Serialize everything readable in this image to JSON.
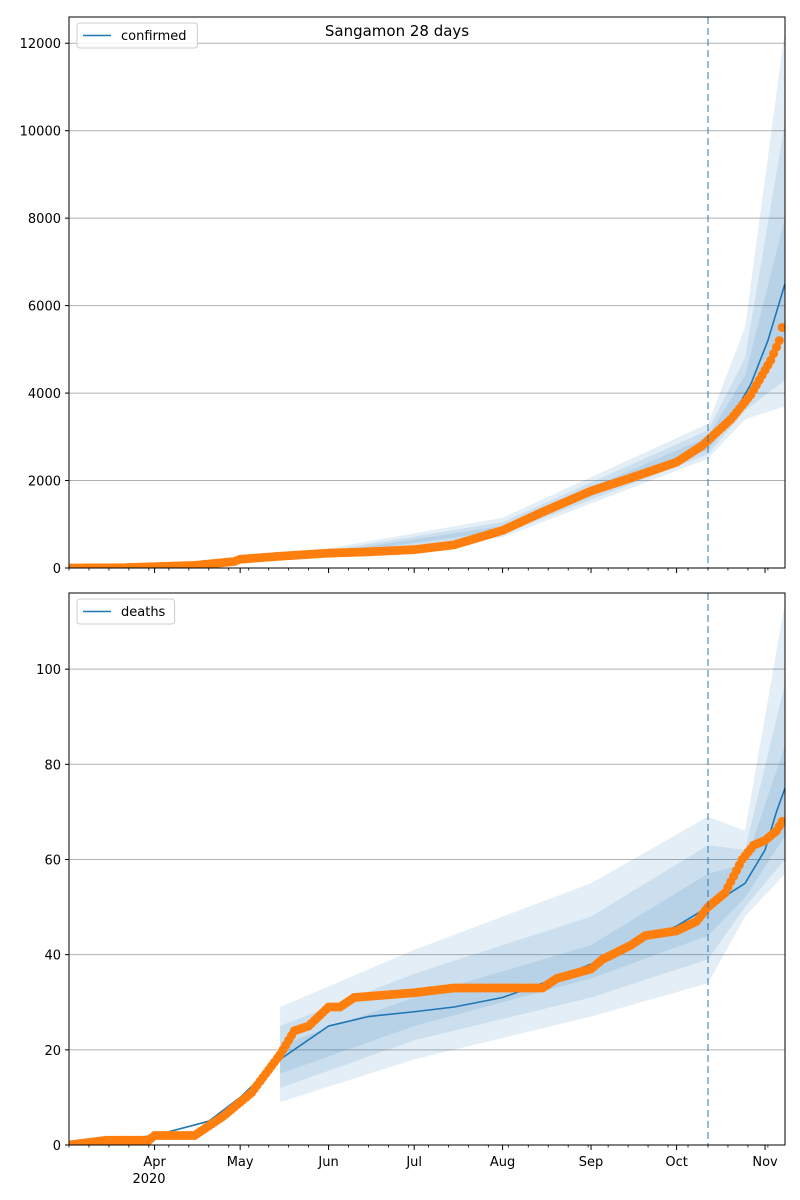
{
  "figure": {
    "title": "Sangamon 28 days",
    "year_label": "2020"
  },
  "colors": {
    "model": "#1f77b4",
    "observed": "#ff7f0e",
    "band": "#1f77b4",
    "grid": "#b0b0b0",
    "forecast_line": "#1f77b4"
  },
  "chart_data": [
    {
      "type": "line",
      "panel": "confirmed",
      "legend": [
        {
          "label": "confirmed",
          "placement": "top-left"
        }
      ],
      "x_range": [
        "2020-03-02",
        "2020-11-08"
      ],
      "forecast_start": "2020-10-12",
      "ylim": [
        0,
        12600
      ],
      "y_ticks": [
        "0",
        "2000",
        "4000",
        "6000",
        "8000",
        "10000",
        "12000"
      ],
      "x_ticks": [
        "Apr",
        "May",
        "Jun",
        "Jul",
        "Aug",
        "Sep",
        "Oct",
        "Nov"
      ],
      "grid": "horizontal",
      "model_median": [
        [
          "2020-03-02",
          0
        ],
        [
          "2020-04-01",
          20
        ],
        [
          "2020-05-01",
          150
        ],
        [
          "2020-06-01",
          330
        ],
        [
          "2020-07-01",
          430
        ],
        [
          "2020-07-15",
          520
        ],
        [
          "2020-08-01",
          900
        ],
        [
          "2020-08-15",
          1260
        ],
        [
          "2020-09-01",
          1700
        ],
        [
          "2020-09-15",
          2000
        ],
        [
          "2020-10-01",
          2400
        ],
        [
          "2020-10-12",
          2850
        ],
        [
          "2020-10-20",
          3400
        ],
        [
          "2020-10-27",
          4200
        ],
        [
          "2020-11-02",
          5200
        ],
        [
          "2020-11-08",
          6500
        ]
      ],
      "bands": [
        {
          "name": "50%",
          "points": [
            [
              "2020-06-01",
              300,
              360
            ],
            [
              "2020-08-01",
              850,
              960
            ],
            [
              "2020-10-12",
              2700,
              3000
            ],
            [
              "2020-10-25",
              3800,
              4400
            ],
            [
              "2020-11-08",
              5300,
              8000
            ]
          ]
        },
        {
          "name": "80%",
          "points": [
            [
              "2020-06-01",
              270,
              400
            ],
            [
              "2020-08-01",
              780,
              1050
            ],
            [
              "2020-10-12",
              2600,
              3150
            ],
            [
              "2020-10-25",
              3600,
              4800
            ],
            [
              "2020-11-08",
              4300,
              10200
            ]
          ]
        },
        {
          "name": "95%",
          "points": [
            [
              "2020-06-01",
              240,
              450
            ],
            [
              "2020-08-01",
              700,
              1150
            ],
            [
              "2020-10-12",
              2500,
              3300
            ],
            [
              "2020-10-25",
              3400,
              5500
            ],
            [
              "2020-11-08",
              3700,
              12300
            ]
          ]
        }
      ],
      "observed": [
        [
          "2020-03-02",
          0
        ],
        [
          "2020-03-20",
          5
        ],
        [
          "2020-04-01",
          30
        ],
        [
          "2020-04-15",
          60
        ],
        [
          "2020-04-29",
          150
        ],
        [
          "2020-05-01",
          200
        ],
        [
          "2020-05-15",
          270
        ],
        [
          "2020-06-01",
          340
        ],
        [
          "2020-06-15",
          370
        ],
        [
          "2020-07-01",
          420
        ],
        [
          "2020-07-15",
          530
        ],
        [
          "2020-08-01",
          860
        ],
        [
          "2020-08-15",
          1280
        ],
        [
          "2020-09-01",
          1760
        ],
        [
          "2020-09-15",
          2060
        ],
        [
          "2020-10-01",
          2420
        ],
        [
          "2020-10-10",
          2800
        ],
        [
          "2020-10-20",
          3400
        ],
        [
          "2020-10-27",
          3960
        ],
        [
          "2020-11-03",
          4750
        ],
        [
          "2020-11-06",
          5200
        ],
        [
          "2020-11-07",
          5500
        ]
      ]
    },
    {
      "type": "line",
      "panel": "deaths",
      "legend": [
        {
          "label": "deaths",
          "placement": "top-left"
        }
      ],
      "x_range": [
        "2020-03-02",
        "2020-11-08"
      ],
      "forecast_start": "2020-10-12",
      "ylim": [
        0,
        116
      ],
      "y_ticks": [
        "0",
        "20",
        "40",
        "60",
        "80",
        "100"
      ],
      "x_ticks": [
        "Apr",
        "May",
        "Jun",
        "Jul",
        "Aug",
        "Sep",
        "Oct",
        "Nov"
      ],
      "grid": "horizontal",
      "model_median": [
        [
          "2020-03-02",
          0
        ],
        [
          "2020-04-01",
          2
        ],
        [
          "2020-04-20",
          5
        ],
        [
          "2020-05-01",
          10
        ],
        [
          "2020-05-15",
          18
        ],
        [
          "2020-06-01",
          25
        ],
        [
          "2020-06-15",
          27
        ],
        [
          "2020-07-01",
          28
        ],
        [
          "2020-07-15",
          29
        ],
        [
          "2020-08-01",
          31
        ],
        [
          "2020-08-15",
          34
        ],
        [
          "2020-09-01",
          38
        ],
        [
          "2020-09-15",
          42
        ],
        [
          "2020-10-01",
          46
        ],
        [
          "2020-10-12",
          50
        ],
        [
          "2020-10-25",
          55
        ],
        [
          "2020-11-01",
          62
        ],
        [
          "2020-11-05",
          70
        ],
        [
          "2020-11-08",
          75
        ]
      ],
      "bands": [
        {
          "name": "50%",
          "points": [
            [
              "2020-05-15",
              15,
              21
            ],
            [
              "2020-07-01",
              25,
              31
            ],
            [
              "2020-09-01",
              35,
              42
            ],
            [
              "2020-10-12",
              44,
              57
            ],
            [
              "2020-10-25",
              52,
              59
            ],
            [
              "2020-11-08",
              65,
              84
            ]
          ]
        },
        {
          "name": "80%",
          "points": [
            [
              "2020-05-15",
              12,
              25
            ],
            [
              "2020-07-01",
              22,
              36
            ],
            [
              "2020-09-01",
              31,
              48
            ],
            [
              "2020-10-12",
              39,
              63
            ],
            [
              "2020-10-25",
              50,
              62
            ],
            [
              "2020-11-08",
              60,
              97
            ]
          ]
        },
        {
          "name": "95%",
          "points": [
            [
              "2020-05-15",
              9,
              29
            ],
            [
              "2020-07-01",
              18,
              41
            ],
            [
              "2020-09-01",
              27,
              55
            ],
            [
              "2020-10-12",
              34,
              69
            ],
            [
              "2020-10-25",
              48,
              66
            ],
            [
              "2020-11-08",
              57,
              114
            ]
          ]
        }
      ],
      "observed": [
        [
          "2020-03-02",
          0
        ],
        [
          "2020-03-15",
          1
        ],
        [
          "2020-03-30",
          1
        ],
        [
          "2020-04-01",
          2
        ],
        [
          "2020-04-15",
          2
        ],
        [
          "2020-04-20",
          4
        ],
        [
          "2020-04-25",
          6
        ],
        [
          "2020-05-01",
          9
        ],
        [
          "2020-05-05",
          11
        ],
        [
          "2020-05-10",
          15
        ],
        [
          "2020-05-15",
          19
        ],
        [
          "2020-05-20",
          24
        ],
        [
          "2020-05-25",
          25
        ],
        [
          "2020-06-01",
          29
        ],
        [
          "2020-06-05",
          29
        ],
        [
          "2020-06-10",
          31
        ],
        [
          "2020-07-01",
          32
        ],
        [
          "2020-07-15",
          33
        ],
        [
          "2020-08-15",
          33
        ],
        [
          "2020-08-20",
          35
        ],
        [
          "2020-09-01",
          37
        ],
        [
          "2020-09-05",
          39
        ],
        [
          "2020-09-15",
          42
        ],
        [
          "2020-09-20",
          44
        ],
        [
          "2020-10-01",
          45
        ],
        [
          "2020-10-08",
          47
        ],
        [
          "2020-10-12",
          50
        ],
        [
          "2020-10-18",
          53
        ],
        [
          "2020-10-24",
          60
        ],
        [
          "2020-10-28",
          63
        ],
        [
          "2020-11-01",
          64
        ],
        [
          "2020-11-05",
          66
        ],
        [
          "2020-11-07",
          68
        ]
      ]
    }
  ]
}
